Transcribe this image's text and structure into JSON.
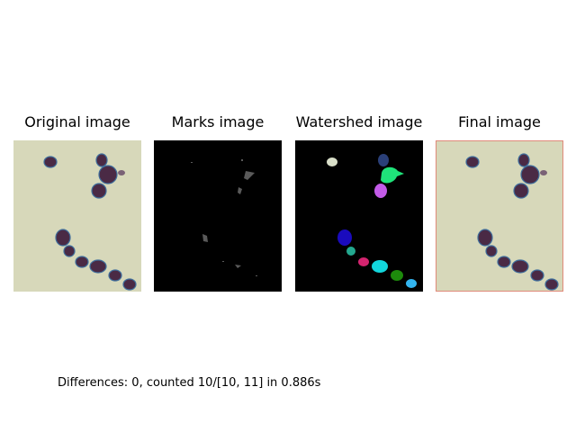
{
  "panels": [
    {
      "title": "Original image"
    },
    {
      "title": "Marks image"
    },
    {
      "title": "Watershed image"
    },
    {
      "title": "Final image"
    }
  ],
  "caption": "Differences: 0, counted 10/[10, 11] in 0.886s",
  "colors": {
    "background": "#d7d8ba",
    "cell": "#4a2a45",
    "cell_edge": "#3f6e9c",
    "marks_bg": "#000000",
    "final_border": "#e08a7a",
    "regions": [
      "#d9dfc9",
      "#2a3f78",
      "#1fe37a",
      "#c35be8",
      "#1a0bbd",
      "#23a88f",
      "#d4246f",
      "#12d6dc",
      "#1d8a0c",
      "#33b5f0"
    ]
  }
}
